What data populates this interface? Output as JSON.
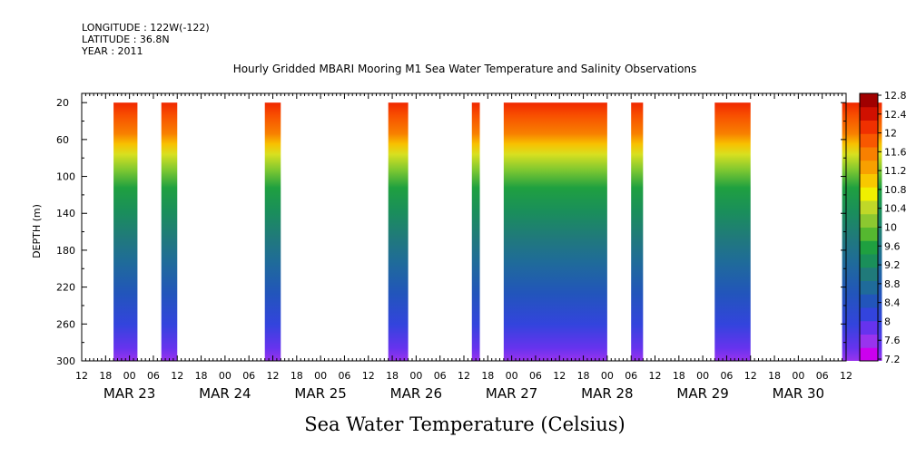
{
  "header": {
    "longitude": "LONGITUDE : 122W(-122)",
    "latitude": "LATITUDE : 36.8N",
    "year": "YEAR : 2011"
  },
  "chart_data": {
    "type": "heatmap",
    "title": "Hourly Gridded MBARI Mooring M1 Sea Water Temperature and Salinity Observations",
    "xlabel": "Sea Water Temperature (Celsius)",
    "ylabel": "DEPTH (m)",
    "y_ticks": [
      20,
      60,
      100,
      140,
      180,
      220,
      260,
      300
    ],
    "y_range": [
      300,
      10
    ],
    "x_range_hours": [
      -12,
      180
    ],
    "x_hour_ticks": [
      "12",
      "18",
      "00",
      "06",
      "12",
      "18",
      "00",
      "06",
      "12",
      "18",
      "00",
      "06",
      "12",
      "18",
      "00",
      "06",
      "12",
      "18",
      "00",
      "06",
      "12",
      "18",
      "00",
      "06",
      "12",
      "18",
      "00",
      "06",
      "12",
      "18",
      "00",
      "06",
      "12"
    ],
    "dates": [
      "MAR 23",
      "MAR 24",
      "MAR 25",
      "MAR 26",
      "MAR 27",
      "MAR 28",
      "MAR 29",
      "MAR 30"
    ],
    "colorbar": {
      "labels": [
        "12.8",
        "12.4",
        "12",
        "11.6",
        "11.2",
        "10.8",
        "10.4",
        "10",
        "9.6",
        "9.2",
        "8.8",
        "8.4",
        "8",
        "7.6",
        "7.2"
      ],
      "min": 7.2,
      "max": 12.8,
      "colors": [
        "#cc00ee",
        "#9933ee",
        "#6633ee",
        "#3344dd",
        "#2255bb",
        "#1f6b9a",
        "#207a7a",
        "#1a8f5a",
        "#1fa040",
        "#55b830",
        "#8cc830",
        "#c0d828",
        "#f0f000",
        "#f8c800",
        "#f8a000",
        "#f88000",
        "#f85800",
        "#f03000",
        "#d01000",
        "#a00000"
      ]
    },
    "segments": [
      {
        "start_hour": -4,
        "end_hour": 2,
        "surface_temp": 11.4
      },
      {
        "start_hour": 8,
        "end_hour": 12,
        "surface_temp": 11.4
      },
      {
        "start_hour": 34,
        "end_hour": 38,
        "surface_temp": 11.6
      },
      {
        "start_hour": 65,
        "end_hour": 70,
        "surface_temp": 11.9
      },
      {
        "start_hour": 86,
        "end_hour": 88,
        "surface_temp": 11.9
      },
      {
        "start_hour": 94,
        "end_hour": 120,
        "surface_temp": 12.0
      },
      {
        "start_hour": 126,
        "end_hour": 129,
        "surface_temp": 11.9
      },
      {
        "start_hour": 147,
        "end_hour": 156,
        "surface_temp": 11.8
      },
      {
        "start_hour": 179,
        "end_hour": 189,
        "surface_temp": 11.8
      }
    ]
  }
}
